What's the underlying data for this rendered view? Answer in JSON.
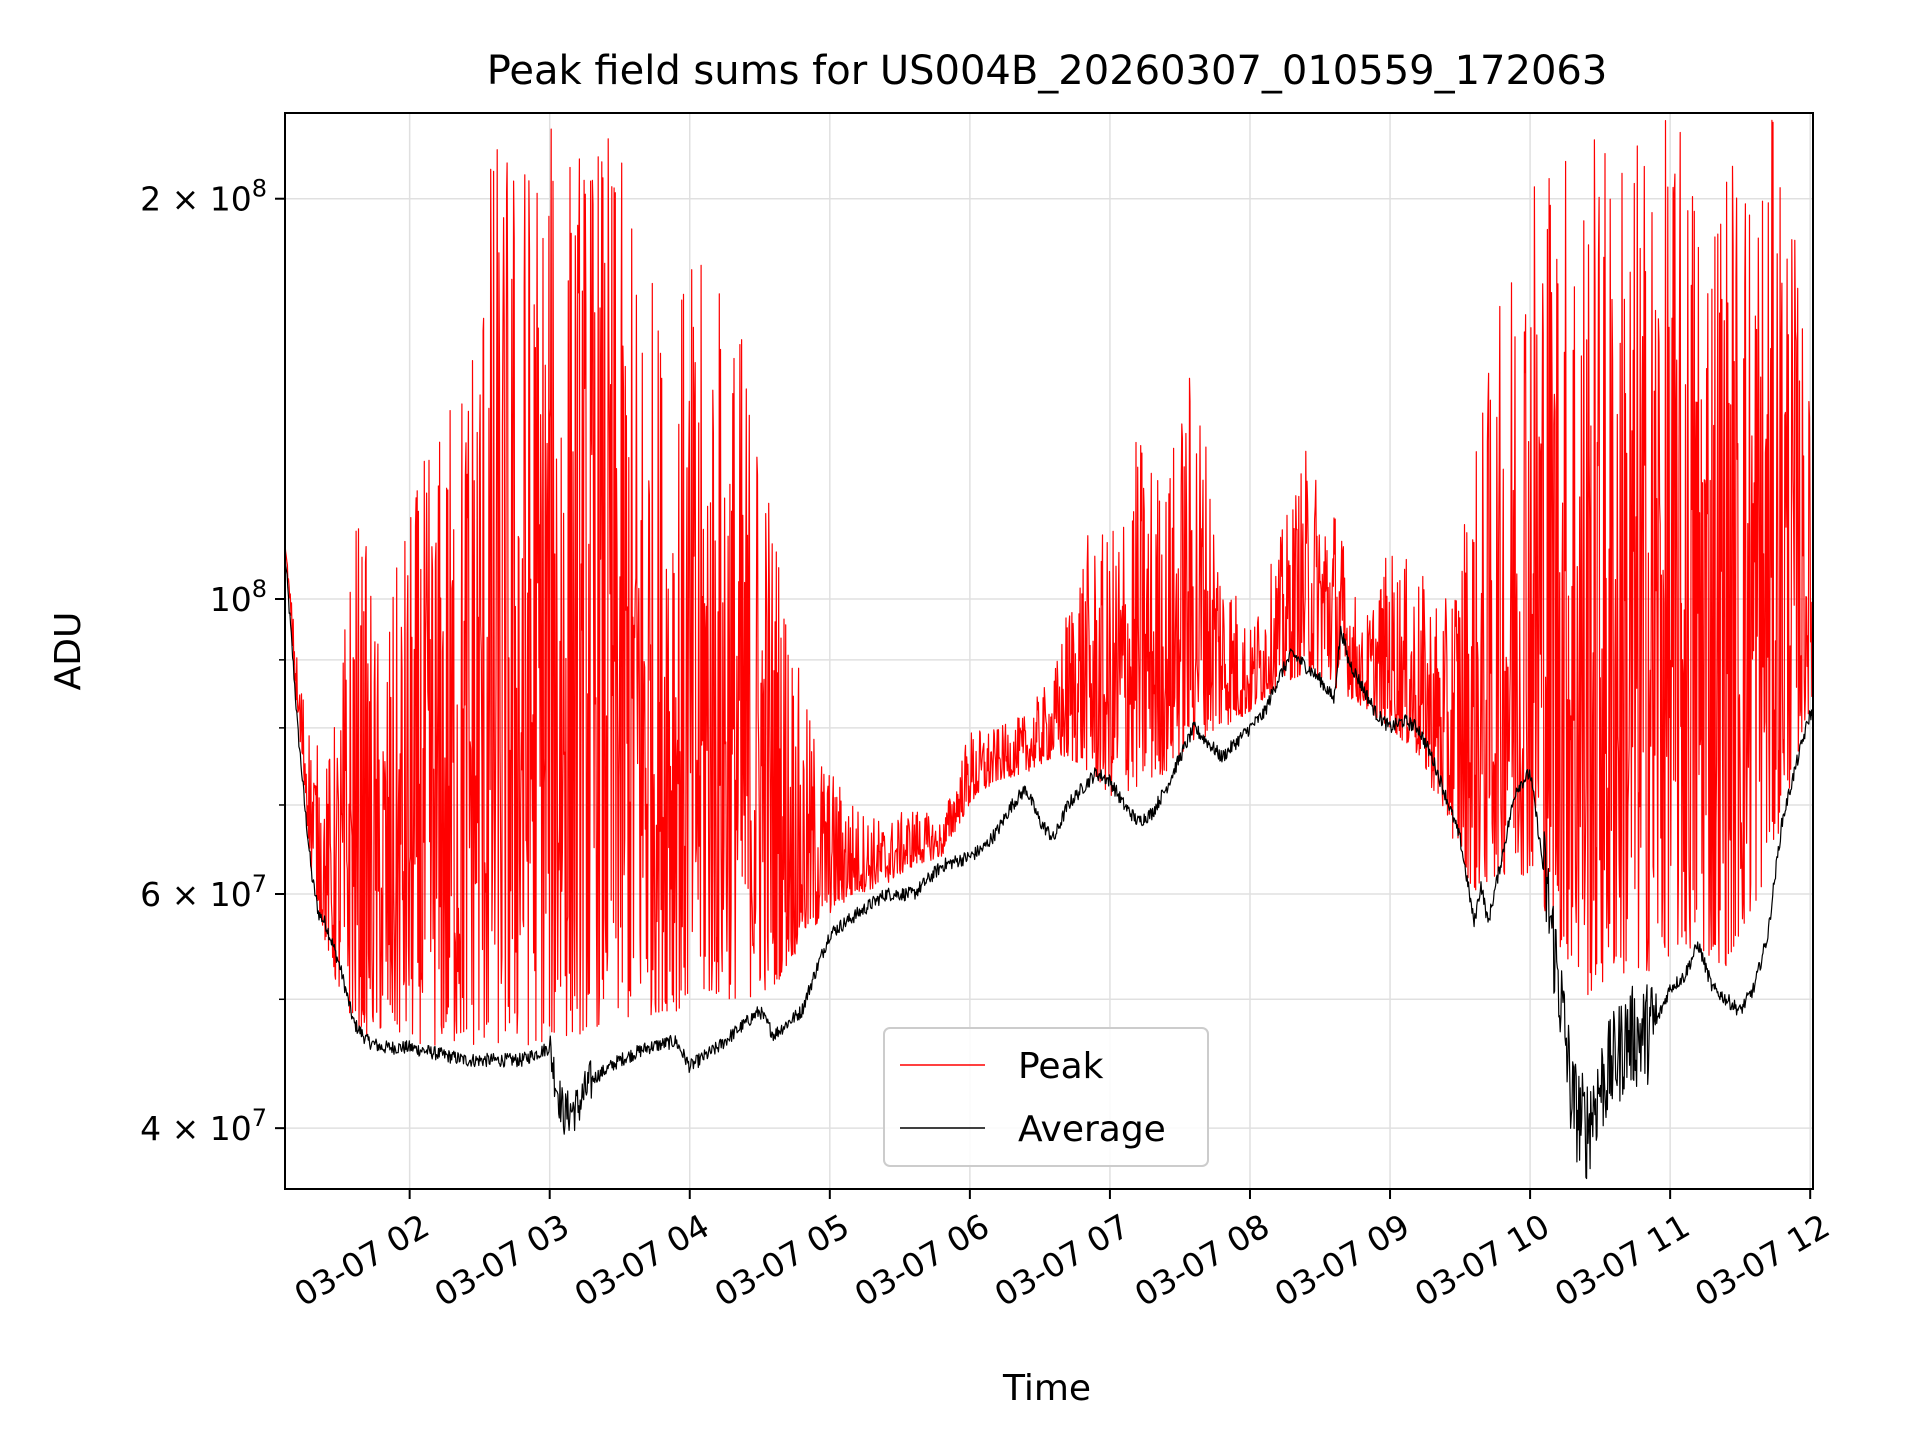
{
  "chart_data": {
    "type": "line",
    "title": "Peak field sums for US004B_20260307_010559_172063",
    "xlabel": "Time",
    "ylabel": "ADU",
    "yscale": "log",
    "ylim": [
      36000000,
      232000000
    ],
    "xlim_hours": [
      1.11,
      12.02
    ],
    "grid": true,
    "legend_position": "lower center",
    "x_ticks": [
      {
        "hour": 2,
        "label": "03-07 02"
      },
      {
        "hour": 3,
        "label": "03-07 03"
      },
      {
        "hour": 4,
        "label": "03-07 04"
      },
      {
        "hour": 5,
        "label": "03-07 05"
      },
      {
        "hour": 6,
        "label": "03-07 06"
      },
      {
        "hour": 7,
        "label": "03-07 07"
      },
      {
        "hour": 8,
        "label": "03-07 08"
      },
      {
        "hour": 9,
        "label": "03-07 09"
      },
      {
        "hour": 10,
        "label": "03-07 10"
      },
      {
        "hour": 11,
        "label": "03-07 11"
      },
      {
        "hour": 12,
        "label": "03-07 12"
      }
    ],
    "y_major_ticks": [
      {
        "value": 40000000,
        "base": "4 × 10",
        "exp": "7"
      },
      {
        "value": 60000000,
        "base": "6 × 10",
        "exp": "7"
      },
      {
        "value": 100000000,
        "base": "10",
        "exp": "8"
      },
      {
        "value": 200000000,
        "base": "2 × 10",
        "exp": "8"
      }
    ],
    "y_minor_gridlines": [
      50000000,
      70000000,
      80000000,
      90000000
    ],
    "series": [
      {
        "name": "Peak",
        "color": "#ff0000",
        "x_hours": [
          1.11,
          1.2,
          1.3,
          1.4,
          1.5,
          1.6,
          1.7,
          1.8,
          2.0,
          2.2,
          2.4,
          2.6,
          2.8,
          3.0,
          3.2,
          3.4,
          3.6,
          3.8,
          4.0,
          4.2,
          4.4,
          4.6,
          4.8,
          5.0,
          5.2,
          5.4,
          5.6,
          5.8,
          6.0,
          6.2,
          6.4,
          6.6,
          6.8,
          7.0,
          7.2,
          7.4,
          7.6,
          7.8,
          8.0,
          8.2,
          8.4,
          8.6,
          8.8,
          9.0,
          9.2,
          9.4,
          9.6,
          9.8,
          10.0,
          10.2,
          10.4,
          10.6,
          10.8,
          11.0,
          11.2,
          11.4,
          11.6,
          11.8,
          12.0
        ],
        "baseline": [
          110000000,
          80000000,
          62000000,
          55000000,
          50000000,
          48000000,
          47000000,
          47000000,
          46500000,
          46000000,
          46000000,
          46000000,
          46000000,
          46500000,
          47000000,
          48000000,
          48000000,
          49000000,
          49000000,
          50000000,
          50000000,
          51000000,
          55000000,
          58000000,
          60000000,
          61000000,
          63000000,
          64000000,
          70000000,
          73000000,
          74000000,
          76000000,
          75000000,
          71000000,
          72000000,
          74000000,
          78000000,
          80000000,
          82000000,
          86000000,
          88000000,
          86000000,
          83000000,
          80000000,
          76000000,
          68000000,
          60000000,
          62000000,
          62000000,
          55000000,
          50000000,
          52000000,
          52000000,
          54000000,
          54000000,
          53000000,
          58000000,
          68000000,
          83000000
        ],
        "spike_max": [
          110000000,
          90000000,
          80000000,
          75000000,
          85000000,
          120000000,
          110000000,
          90000000,
          120000000,
          135000000,
          160000000,
          230000000,
          230000000,
          230000000,
          230000000,
          230000000,
          200000000,
          170000000,
          180000000,
          180000000,
          160000000,
          120000000,
          85000000,
          75000000,
          70000000,
          68000000,
          70000000,
          68000000,
          80000000,
          80000000,
          82000000,
          88000000,
          112000000,
          112000000,
          135000000,
          125000000,
          155000000,
          110000000,
          95000000,
          110000000,
          130000000,
          120000000,
          95000000,
          110000000,
          105000000,
          100000000,
          130000000,
          170000000,
          230000000,
          230000000,
          230000000,
          230000000,
          230000000,
          230000000,
          230000000,
          230000000,
          230000000,
          230000000,
          140000000
        ]
      },
      {
        "name": "Average",
        "color": "#000000",
        "x_hours": [
          1.11,
          1.15,
          1.2,
          1.25,
          1.3,
          1.35,
          1.4,
          1.5,
          1.6,
          1.7,
          1.8,
          2.0,
          2.2,
          2.4,
          2.6,
          2.8,
          3.0,
          3.05,
          3.1,
          3.2,
          3.3,
          3.5,
          3.7,
          3.9,
          4.0,
          4.2,
          4.4,
          4.5,
          4.6,
          4.8,
          5.0,
          5.2,
          5.4,
          5.6,
          5.8,
          6.0,
          6.1,
          6.2,
          6.3,
          6.4,
          6.5,
          6.6,
          6.7,
          6.8,
          6.9,
          7.0,
          7.1,
          7.2,
          7.3,
          7.4,
          7.5,
          7.6,
          7.7,
          7.8,
          7.9,
          8.0,
          8.1,
          8.2,
          8.3,
          8.4,
          8.5,
          8.6,
          8.65,
          8.7,
          8.8,
          8.9,
          9.0,
          9.1,
          9.2,
          9.3,
          9.4,
          9.5,
          9.6,
          9.65,
          9.7,
          9.8,
          9.9,
          10.0,
          10.1,
          10.2,
          10.3,
          10.4,
          10.5,
          10.6,
          10.7,
          10.8,
          10.9,
          11.0,
          11.1,
          11.2,
          11.3,
          11.4,
          11.5,
          11.6,
          11.7,
          11.8,
          11.9,
          12.0
        ],
        "values": [
          108000000,
          95000000,
          80000000,
          70000000,
          62000000,
          58000000,
          57000000,
          53000000,
          48000000,
          46500000,
          46000000,
          46000000,
          45500000,
          45000000,
          45000000,
          45000000,
          46000000,
          43000000,
          41000000,
          41500000,
          43500000,
          45000000,
          46000000,
          46500000,
          44500000,
          46000000,
          48000000,
          49000000,
          47000000,
          49000000,
          56000000,
          58000000,
          60000000,
          60000000,
          63000000,
          64000000,
          65000000,
          67000000,
          70000000,
          72000000,
          68000000,
          66000000,
          70000000,
          72000000,
          74000000,
          73000000,
          70000000,
          68000000,
          69000000,
          72000000,
          76000000,
          80000000,
          78000000,
          76000000,
          78000000,
          80000000,
          82000000,
          87000000,
          91000000,
          89000000,
          87000000,
          84000000,
          95000000,
          90000000,
          86000000,
          82000000,
          80000000,
          81000000,
          80000000,
          76000000,
          71000000,
          66000000,
          57000000,
          61000000,
          57000000,
          64000000,
          72000000,
          74000000,
          62000000,
          52000000,
          42000000,
          40000000,
          43000000,
          45000000,
          47000000,
          47000000,
          48000000,
          51000000,
          52000000,
          55000000,
          51000000,
          50000000,
          49000000,
          51000000,
          56000000,
          68000000,
          75000000,
          82000000
        ]
      }
    ]
  }
}
